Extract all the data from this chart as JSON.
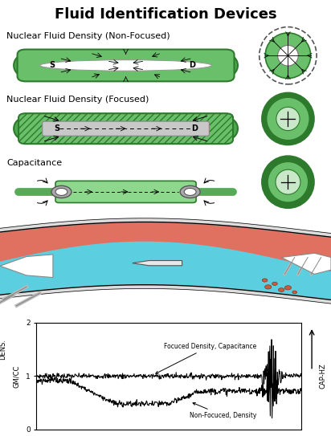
{
  "title": "Fluid Identification Devices",
  "title_fontsize": 13,
  "background_color": "#ffffff",
  "label1": "Nuclear Fluid Density (Non-Focused)",
  "label2": "Nuclear Fluid Density (Focused)",
  "label3": "Capacitance",
  "ylabel_left": "GM/CC",
  "ylabel_left2": "DENS.",
  "ylabel_right": "CAP-HZ",
  "annotation1": "Focuced Density, Capacitance",
  "annotation2": "Non-Focuced, Density",
  "green_body": "#6abf6a",
  "green_dark": "#2d7a2d",
  "green_mid": "#4da84d",
  "green_light": "#c8e8c8",
  "gray_channel": "#c8c8c8",
  "cyan_water": "#5bcfdf",
  "orange_oil": "#e07060",
  "fig_width": 4.12,
  "fig_height": 5.43,
  "fig_dpi": 100
}
